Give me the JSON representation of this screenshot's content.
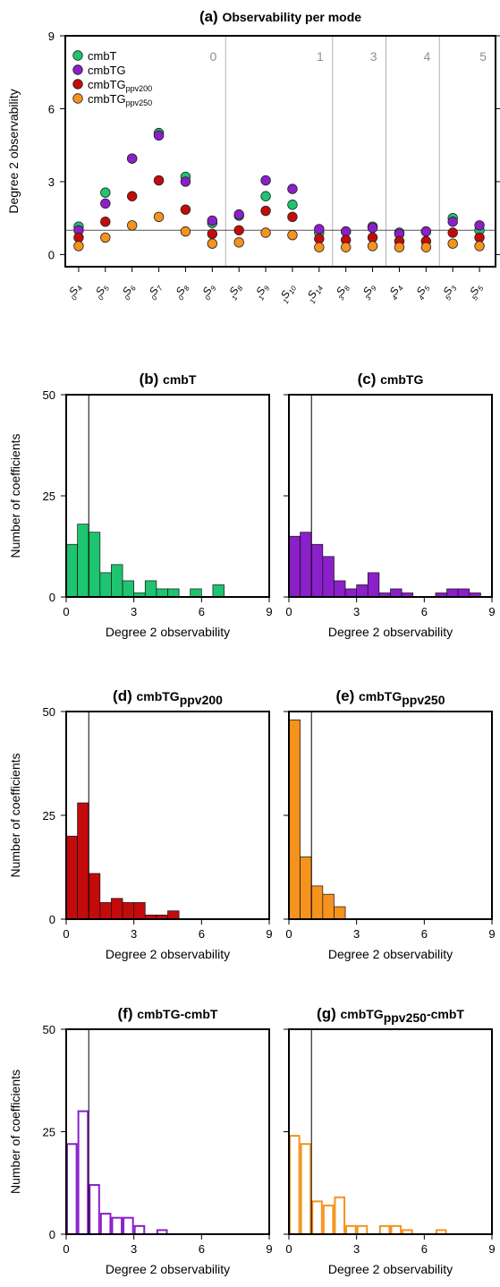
{
  "chart_data": [
    {
      "id": "a",
      "type": "scatter",
      "panel_letter": "(a)",
      "title": "Observability per mode",
      "ylabel": "Degree 2 observability",
      "ylim": [
        -0.5,
        9.0
      ],
      "yticks": [
        0,
        3,
        6,
        9
      ],
      "reference_line": 1,
      "modes": [
        {
          "n": "0",
          "name": "S",
          "l": "4"
        },
        {
          "n": "0",
          "name": "S",
          "l": "5"
        },
        {
          "n": "0",
          "name": "S",
          "l": "6"
        },
        {
          "n": "0",
          "name": "S",
          "l": "7"
        },
        {
          "n": "0",
          "name": "S",
          "l": "8"
        },
        {
          "n": "0",
          "name": "S",
          "l": "9"
        },
        {
          "n": "1",
          "name": "S",
          "l": "8"
        },
        {
          "n": "1",
          "name": "S",
          "l": "9"
        },
        {
          "n": "1",
          "name": "S",
          "l": "10"
        },
        {
          "n": "1",
          "name": "S",
          "l": "14"
        },
        {
          "n": "3",
          "name": "S",
          "l": "8"
        },
        {
          "n": "3",
          "name": "S",
          "l": "9"
        },
        {
          "n": "4",
          "name": "S",
          "l": "4"
        },
        {
          "n": "4",
          "name": "S",
          "l": "5"
        },
        {
          "n": "5",
          "name": "S",
          "l": "3"
        },
        {
          "n": "5",
          "name": "S",
          "l": "5"
        }
      ],
      "groups": [
        {
          "label": "0",
          "start": 0,
          "end": 5
        },
        {
          "label": "1",
          "start": 6,
          "end": 9
        },
        {
          "label": "3",
          "start": 10,
          "end": 11
        },
        {
          "label": "4",
          "start": 12,
          "end": 13
        },
        {
          "label": "5",
          "start": 14,
          "end": 15
        }
      ],
      "legend_position": "top-left",
      "series": [
        {
          "name": "cmbT",
          "sub": "",
          "color": "#1ec46f",
          "values": [
            1.15,
            2.55,
            3.95,
            5.0,
            3.2,
            1.3,
            1.6,
            2.4,
            2.05,
            0.9,
            0.95,
            1.15,
            0.9,
            0.95,
            1.5,
            1.0
          ]
        },
        {
          "name": "cmbTG",
          "sub": "",
          "color": "#8b1fc9",
          "values": [
            1.0,
            2.1,
            3.95,
            4.9,
            3.0,
            1.4,
            1.65,
            3.05,
            2.7,
            1.05,
            0.95,
            1.1,
            0.85,
            0.95,
            1.35,
            1.2
          ]
        },
        {
          "name": "cmbTG",
          "sub": "ppv200",
          "color": "#c40b0b",
          "values": [
            0.7,
            1.35,
            2.4,
            3.05,
            1.85,
            0.85,
            1.0,
            1.8,
            1.55,
            0.65,
            0.6,
            0.7,
            0.55,
            0.55,
            0.9,
            0.7
          ]
        },
        {
          "name": "cmbTG",
          "sub": "ppv250",
          "color": "#f5931e",
          "values": [
            0.35,
            0.7,
            1.2,
            1.55,
            0.95,
            0.45,
            0.5,
            0.9,
            0.8,
            0.3,
            0.3,
            0.35,
            0.3,
            0.3,
            0.45,
            0.35
          ]
        }
      ]
    },
    {
      "id": "b",
      "type": "bar",
      "style": "filled",
      "panel_letter": "(b)",
      "title": "cmbT",
      "title_sub": "",
      "color": "#1ec46f",
      "xlabel": "Degree 2 observability",
      "ylabel": "Number of coefficients",
      "xlim": [
        0,
        9
      ],
      "ylim": [
        0,
        50
      ],
      "xticks": [
        0,
        3,
        6,
        9
      ],
      "yticks": [
        0,
        25,
        50
      ],
      "reference_line": 1,
      "bin_width": 0.5,
      "bins": [
        0.0,
        0.5,
        1.0,
        1.5,
        2.0,
        2.5,
        3.0,
        3.5,
        4.0,
        4.5,
        5.0,
        5.5,
        6.0,
        6.5,
        7.0,
        7.5,
        8.0,
        8.5
      ],
      "values": [
        13,
        18,
        16,
        6,
        8,
        4,
        1,
        4,
        2,
        2,
        0,
        2,
        0,
        3,
        0,
        0,
        0,
        0
      ]
    },
    {
      "id": "c",
      "type": "bar",
      "style": "filled",
      "panel_letter": "(c)",
      "title": "cmbTG",
      "title_sub": "",
      "color": "#8b1fc9",
      "xlabel": "Degree 2 observability",
      "ylabel": "",
      "xlim": [
        0,
        9
      ],
      "ylim": [
        0,
        50
      ],
      "xticks": [
        0,
        3,
        6,
        9
      ],
      "yticks": [
        0,
        25,
        50
      ],
      "reference_line": 1,
      "bin_width": 0.5,
      "bins": [
        0.0,
        0.5,
        1.0,
        1.5,
        2.0,
        2.5,
        3.0,
        3.5,
        4.0,
        4.5,
        5.0,
        5.5,
        6.0,
        6.5,
        7.0,
        7.5,
        8.0,
        8.5
      ],
      "values": [
        15,
        16,
        13,
        10,
        4,
        2,
        3,
        6,
        1,
        2,
        1,
        0,
        0,
        1,
        2,
        2,
        1,
        0
      ]
    },
    {
      "id": "d",
      "type": "bar",
      "style": "filled",
      "panel_letter": "(d)",
      "title": "cmbTG",
      "title_sub": "ppv200",
      "color": "#c40b0b",
      "xlabel": "Degree 2 observability",
      "ylabel": "Number of coefficients",
      "xlim": [
        0,
        9
      ],
      "ylim": [
        0,
        50
      ],
      "xticks": [
        0,
        3,
        6,
        9
      ],
      "yticks": [
        0,
        25,
        50
      ],
      "reference_line": 1,
      "bin_width": 0.5,
      "bins": [
        0.0,
        0.5,
        1.0,
        1.5,
        2.0,
        2.5,
        3.0,
        3.5,
        4.0,
        4.5,
        5.0,
        5.5,
        6.0,
        6.5,
        7.0,
        7.5,
        8.0,
        8.5
      ],
      "values": [
        20,
        28,
        11,
        4,
        5,
        4,
        4,
        1,
        1,
        2,
        0,
        0,
        0,
        0,
        0,
        0,
        0,
        0
      ]
    },
    {
      "id": "e",
      "type": "bar",
      "style": "filled",
      "panel_letter": "(e)",
      "title": "cmbTG",
      "title_sub": "ppv250",
      "color": "#f5931e",
      "xlabel": "Degree 2 observability",
      "ylabel": "",
      "xlim": [
        0,
        9
      ],
      "ylim": [
        0,
        50
      ],
      "xticks": [
        0,
        3,
        6,
        9
      ],
      "yticks": [
        0,
        25,
        50
      ],
      "reference_line": 1,
      "bin_width": 0.5,
      "bins": [
        0.0,
        0.5,
        1.0,
        1.5,
        2.0,
        2.5,
        3.0,
        3.5,
        4.0,
        4.5,
        5.0,
        5.5,
        6.0,
        6.5,
        7.0,
        7.5,
        8.0,
        8.5
      ],
      "values": [
        48,
        15,
        8,
        6,
        3,
        0,
        0,
        0,
        0,
        0,
        0,
        0,
        0,
        0,
        0,
        0,
        0,
        0
      ]
    },
    {
      "id": "f",
      "type": "bar",
      "style": "outline",
      "panel_letter": "(f)",
      "title": "cmbTG-cmbT",
      "title_sub": "",
      "color": "#8b1fc9",
      "xlabel": "Degree 2 observability",
      "ylabel": "Number of coefficients",
      "xlim": [
        0,
        9
      ],
      "ylim": [
        0,
        50
      ],
      "xticks": [
        0,
        3,
        6,
        9
      ],
      "yticks": [
        0,
        25,
        50
      ],
      "reference_line": 1,
      "bin_width": 0.5,
      "bins": [
        0.0,
        0.5,
        1.0,
        1.5,
        2.0,
        2.5,
        3.0,
        3.5,
        4.0,
        4.5,
        5.0,
        5.5,
        6.0,
        6.5,
        7.0,
        7.5,
        8.0,
        8.5
      ],
      "values": [
        22,
        30,
        12,
        5,
        4,
        4,
        2,
        0,
        1,
        0,
        0,
        0,
        0,
        0,
        0,
        0,
        0,
        0
      ]
    },
    {
      "id": "g",
      "type": "bar",
      "style": "outline",
      "panel_letter": "(g)",
      "title": "cmbTG",
      "title_sub": "ppv250",
      "title_suffix": "-cmbT",
      "color": "#f5931e",
      "xlabel": "Degree 2 observability",
      "ylabel": "",
      "xlim": [
        0,
        9
      ],
      "ylim": [
        0,
        50
      ],
      "xticks": [
        0,
        3,
        6,
        9
      ],
      "yticks": [
        0,
        25,
        50
      ],
      "reference_line": 1,
      "bin_width": 0.5,
      "bins": [
        0.0,
        0.5,
        1.0,
        1.5,
        2.0,
        2.5,
        3.0,
        3.5,
        4.0,
        4.5,
        5.0,
        5.5,
        6.0,
        6.5,
        7.0,
        7.5,
        8.0,
        8.5
      ],
      "values": [
        24,
        22,
        8,
        7,
        9,
        2,
        2,
        0,
        2,
        2,
        1,
        0,
        0,
        1,
        0,
        0,
        0,
        0
      ]
    }
  ]
}
